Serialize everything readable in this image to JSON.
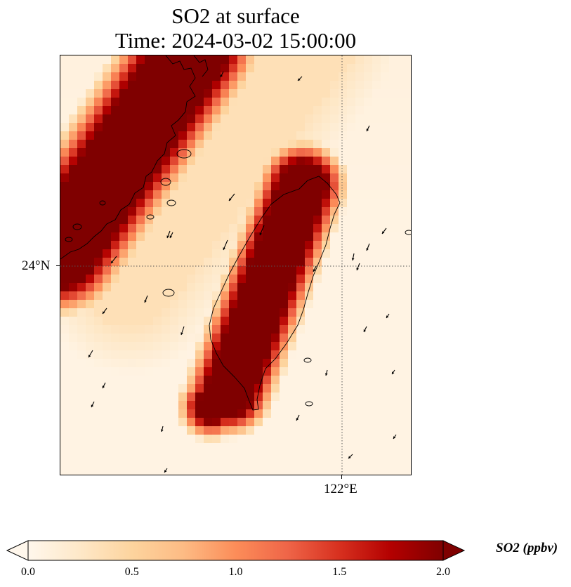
{
  "title": {
    "line1": "SO2 at surface",
    "line2": "Time: 2024-03-02 15:00:00"
  },
  "map": {
    "lat_label": "24°N",
    "lon_label": "122°E",
    "gridline_lat_deg": 24,
    "gridline_lon_deg": 122,
    "coastline_color": "#000000",
    "wind_arrow_color": "#000000"
  },
  "colorbar": {
    "label": "SO2 (ppbv)",
    "min": 0.0,
    "max": 2.0,
    "extend": "both",
    "ticks": [
      "0.0",
      "0.5",
      "1.0",
      "1.5",
      "2.0"
    ],
    "colormap": "OrRd",
    "colors": [
      "#fff7ec",
      "#fee8c8",
      "#fdd49e",
      "#fdbb84",
      "#fc8d59",
      "#ef6548",
      "#d7301f",
      "#b30000",
      "#7f0000"
    ]
  }
}
